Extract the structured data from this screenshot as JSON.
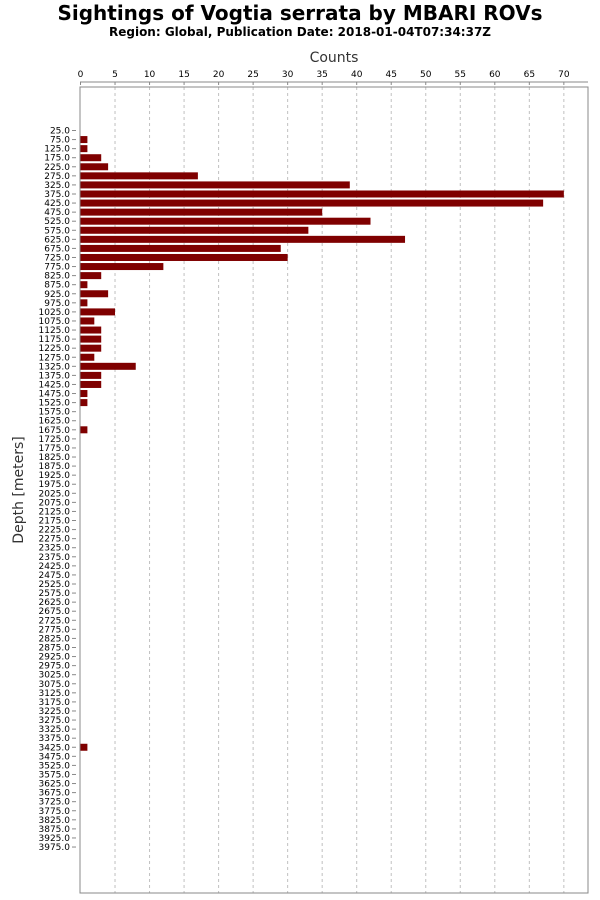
{
  "chart_data": {
    "type": "bar",
    "orientation": "horizontal",
    "title": "Sightings of Vogtia serrata by MBARI ROVs",
    "subtitle": "Region: Global, Publication Date: 2018-01-04T07:34:37Z",
    "xlabel": "Counts",
    "ylabel": "Depth [meters]",
    "xlim": [
      0,
      72
    ],
    "xticks": [
      0,
      5,
      10,
      15,
      20,
      25,
      30,
      35,
      40,
      45,
      50,
      55,
      60,
      65,
      70
    ],
    "grid": true,
    "bar_color": "#7f0000",
    "categories": [
      "25.0",
      "75.0",
      "125.0",
      "175.0",
      "225.0",
      "275.0",
      "325.0",
      "375.0",
      "425.0",
      "475.0",
      "525.0",
      "575.0",
      "625.0",
      "675.0",
      "725.0",
      "775.0",
      "825.0",
      "875.0",
      "925.0",
      "975.0",
      "1025.0",
      "1075.0",
      "1125.0",
      "1175.0",
      "1225.0",
      "1275.0",
      "1325.0",
      "1375.0",
      "1425.0",
      "1475.0",
      "1525.0",
      "1575.0",
      "1625.0",
      "1675.0",
      "1725.0",
      "1775.0",
      "1825.0",
      "1875.0",
      "1925.0",
      "1975.0",
      "2025.0",
      "2075.0",
      "2125.0",
      "2175.0",
      "2225.0",
      "2275.0",
      "2325.0",
      "2375.0",
      "2425.0",
      "2475.0",
      "2525.0",
      "2575.0",
      "2625.0",
      "2675.0",
      "2725.0",
      "2775.0",
      "2825.0",
      "2875.0",
      "2925.0",
      "2975.0",
      "3025.0",
      "3075.0",
      "3125.0",
      "3175.0",
      "3225.0",
      "3275.0",
      "3325.0",
      "3375.0",
      "3425.0",
      "3475.0",
      "3525.0",
      "3575.0",
      "3625.0",
      "3675.0",
      "3725.0",
      "3775.0",
      "3825.0",
      "3875.0",
      "3925.0",
      "3975.0"
    ],
    "values": [
      0,
      1,
      1,
      3,
      4,
      17,
      39,
      70,
      67,
      35,
      42,
      33,
      47,
      29,
      30,
      12,
      3,
      1,
      4,
      1,
      5,
      2,
      3,
      3,
      3,
      2,
      8,
      3,
      3,
      1,
      1,
      0,
      0,
      1,
      0,
      0,
      0,
      0,
      0,
      0,
      0,
      0,
      0,
      0,
      0,
      0,
      0,
      0,
      0,
      0,
      0,
      0,
      0,
      0,
      0,
      0,
      0,
      0,
      0,
      0,
      0,
      0,
      0,
      0,
      0,
      0,
      0,
      0,
      1,
      0,
      0,
      0,
      0,
      0,
      0,
      0,
      0,
      0,
      0,
      0
    ]
  }
}
